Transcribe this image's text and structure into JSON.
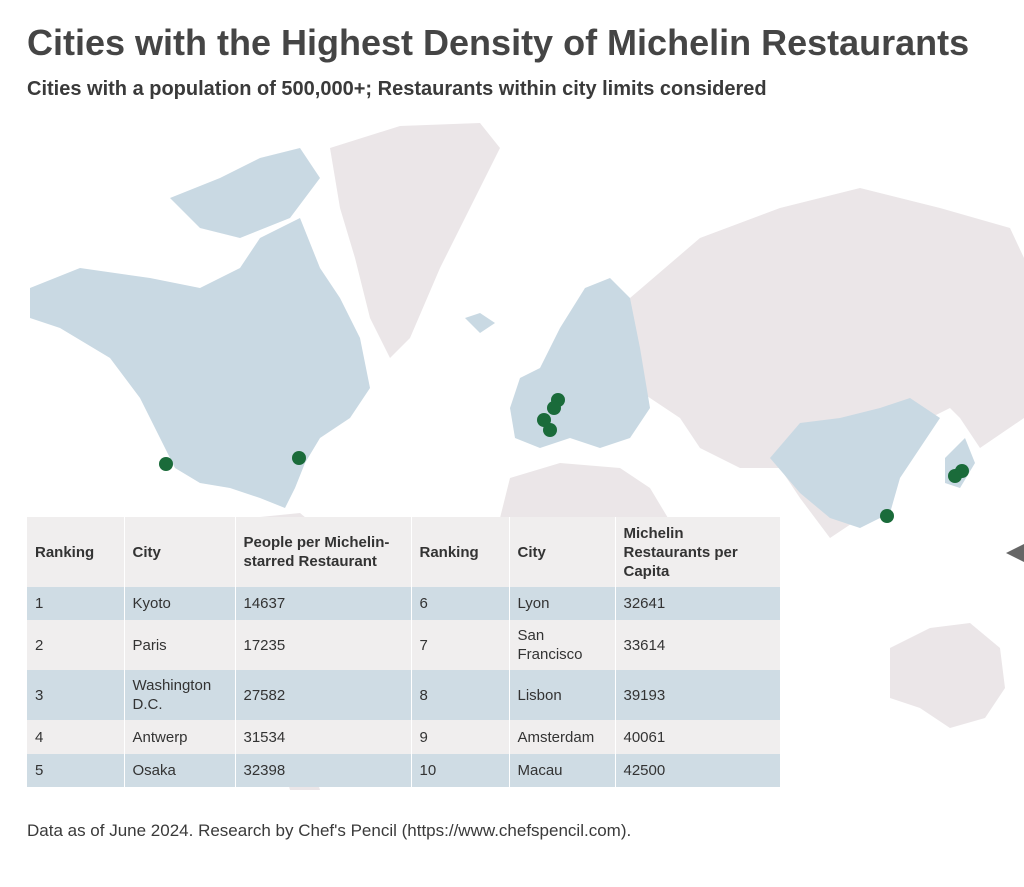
{
  "header": {
    "title": "Cities with the Highest Density of Michelin Restaurants",
    "subtitle": "Cities with a population of 500,000+; Restaurants within city limits considered"
  },
  "table": {
    "columns": [
      "Ranking",
      "City",
      "People per Michelin-starred Restaurant",
      "Ranking",
      "City",
      "Michelin Restaurants per Capita"
    ],
    "rows": [
      [
        1,
        "Kyoto",
        14637,
        6,
        "Lyon",
        32641
      ],
      [
        2,
        "Paris",
        17235,
        7,
        "San Francisco",
        33614
      ],
      [
        3,
        "Washington D.C.",
        27582,
        8,
        "Lisbon",
        39193
      ],
      [
        4,
        "Antwerp",
        31534,
        9,
        "Amsterdam",
        40061
      ],
      [
        5,
        "Osaka",
        32398,
        10,
        "Macau",
        42500
      ]
    ]
  },
  "footer": "Data as of June 2024. Research by Chef's Pencil (https://www.chefspencil.com)."
}
